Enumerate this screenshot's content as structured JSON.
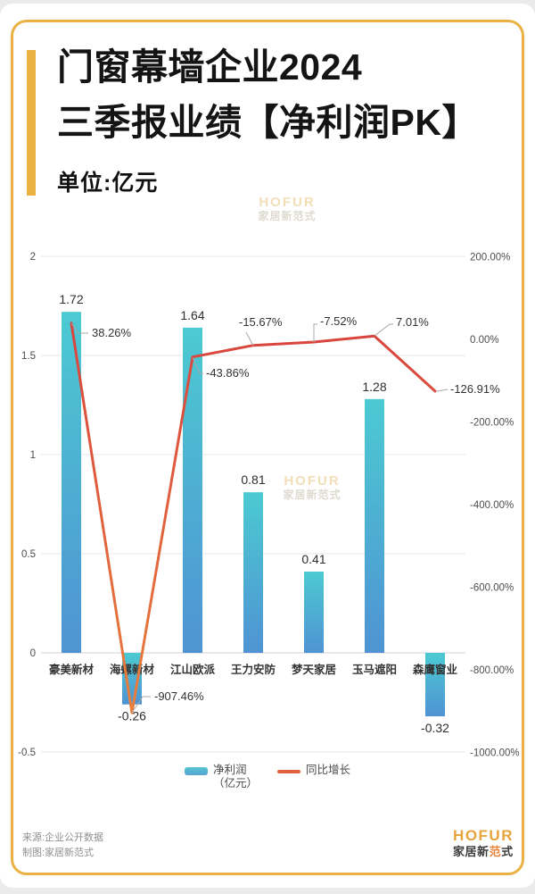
{
  "header": {
    "title_line1": "门窗幕墙企业2024",
    "title_line2": "三季报业绩【净利润PK】",
    "subtitle": "单位:亿元"
  },
  "watermark": {
    "line1": "HOFUR",
    "line2": "家居新范式"
  },
  "chart_data": {
    "type": "bar+line combo",
    "categories": [
      "豪美新材",
      "海螺新材",
      "江山欧派",
      "王力安防",
      "梦天家居",
      "玉马遮阳",
      "森鹰窗业"
    ],
    "series": [
      {
        "name": "净利润（亿元）",
        "type": "bar",
        "axis": "left",
        "values": [
          1.72,
          -0.26,
          1.64,
          0.81,
          0.41,
          1.28,
          -0.32
        ],
        "labels": [
          "1.72",
          "-0.26",
          "1.64",
          "0.81",
          "0.41",
          "1.28",
          "-0.32"
        ]
      },
      {
        "name": "同比增长",
        "type": "line",
        "axis": "right",
        "values": [
          38.26,
          -907.46,
          -43.86,
          -15.67,
          -7.52,
          7.01,
          -126.91
        ],
        "labels": [
          "38.26%",
          "-907.46%",
          "-43.86%",
          "-15.67%",
          "-7.52%",
          "7.01%",
          "-126.91%"
        ]
      }
    ],
    "left_axis": {
      "ticks": [
        "2",
        "1.5",
        "1",
        "0.5",
        "0",
        "-0.5"
      ],
      "range": [
        -0.5,
        2
      ]
    },
    "right_axis": {
      "ticks": [
        "200.00%",
        "0.00%",
        "-200.00%",
        "-400.00%",
        "-600.00%",
        "-800.00%",
        "-1000.00%"
      ],
      "range": [
        -1000,
        200
      ]
    },
    "grid": true,
    "legend_position": "bottom",
    "colors": {
      "bar_top": "#4CCAD2",
      "bar_bottom": "#4F93D3",
      "line_top": "#D8423E",
      "line_bottom": "#E8813C",
      "grid": "#ececec",
      "zero_line": "#dadada",
      "axis_text": "#4d4d4d",
      "category_text": "#333333",
      "value_text": "#2e2e2e",
      "leader": "#a8a8a8",
      "accent_yellow": "#EAB243"
    }
  },
  "legend": {
    "bar_label_line1": "净利润",
    "bar_label_line2": "（亿元）",
    "line_label": "同比增长"
  },
  "footer": {
    "source": "来源:企业公开数据",
    "credit": "制图:家居新范式",
    "logo_name": "HOFUR",
    "logo_sub_a": "家居新",
    "logo_sub_b": "范",
    "logo_sub_c": "式"
  }
}
